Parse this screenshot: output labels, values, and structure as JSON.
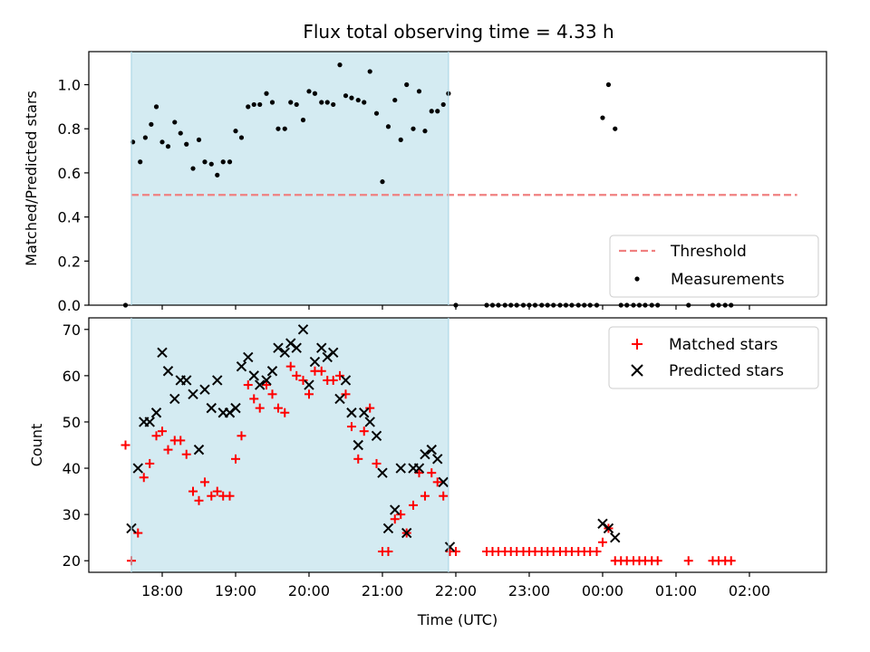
{
  "chart_data": [
    {
      "type": "scatter",
      "title": "Flux total observing time = 4.33 h",
      "xlabel": "",
      "ylabel": "Matched/Predicted stars",
      "ylim": [
        0,
        1.15
      ],
      "yticks": [
        0.0,
        0.2,
        0.4,
        0.6,
        0.8,
        1.0
      ],
      "ytick_labels": [
        "0.0",
        "0.2",
        "0.4",
        "0.6",
        "0.8",
        "1.0"
      ],
      "shaded_interval_hours": [
        17.58,
        21.9
      ],
      "shade_color": "#add8e6",
      "threshold": {
        "name": "Threshold",
        "value": 0.5,
        "x_range": [
          17.58,
          26.65
        ],
        "color": "#f08080"
      },
      "series": [
        {
          "name": "Measurements",
          "color": "#000000",
          "points": [
            [
              17.5,
              0.0
            ],
            [
              17.6,
              0.74
            ],
            [
              17.7,
              0.65
            ],
            [
              17.77,
              0.76
            ],
            [
              17.85,
              0.82
            ],
            [
              17.92,
              0.9
            ],
            [
              18.0,
              0.74
            ],
            [
              18.08,
              0.72
            ],
            [
              18.17,
              0.83
            ],
            [
              18.25,
              0.78
            ],
            [
              18.33,
              0.73
            ],
            [
              18.42,
              0.62
            ],
            [
              18.5,
              0.75
            ],
            [
              18.58,
              0.65
            ],
            [
              18.67,
              0.64
            ],
            [
              18.75,
              0.59
            ],
            [
              18.83,
              0.65
            ],
            [
              18.92,
              0.65
            ],
            [
              19.0,
              0.79
            ],
            [
              19.08,
              0.76
            ],
            [
              19.17,
              0.9
            ],
            [
              19.25,
              0.91
            ],
            [
              19.33,
              0.91
            ],
            [
              19.42,
              0.96
            ],
            [
              19.5,
              0.92
            ],
            [
              19.58,
              0.8
            ],
            [
              19.67,
              0.8
            ],
            [
              19.75,
              0.92
            ],
            [
              19.83,
              0.91
            ],
            [
              19.92,
              0.84
            ],
            [
              20.0,
              0.97
            ],
            [
              20.08,
              0.96
            ],
            [
              20.17,
              0.92
            ],
            [
              20.25,
              0.92
            ],
            [
              20.33,
              0.91
            ],
            [
              20.42,
              1.09
            ],
            [
              20.5,
              0.95
            ],
            [
              20.58,
              0.94
            ],
            [
              20.67,
              0.93
            ],
            [
              20.75,
              0.92
            ],
            [
              20.83,
              1.06
            ],
            [
              20.92,
              0.87
            ],
            [
              21.0,
              0.56
            ],
            [
              21.08,
              0.81
            ],
            [
              21.17,
              0.93
            ],
            [
              21.25,
              0.75
            ],
            [
              21.33,
              1.0
            ],
            [
              21.42,
              0.8
            ],
            [
              21.5,
              0.97
            ],
            [
              21.58,
              0.79
            ],
            [
              21.67,
              0.88
            ],
            [
              21.75,
              0.88
            ],
            [
              21.83,
              0.91
            ],
            [
              21.9,
              0.96
            ],
            [
              22.0,
              0.0
            ],
            [
              22.42,
              0.0
            ],
            [
              22.5,
              0.0
            ],
            [
              22.58,
              0.0
            ],
            [
              22.67,
              0.0
            ],
            [
              22.75,
              0.0
            ],
            [
              22.83,
              0.0
            ],
            [
              22.92,
              0.0
            ],
            [
              23.0,
              0.0
            ],
            [
              23.08,
              0.0
            ],
            [
              23.17,
              0.0
            ],
            [
              23.25,
              0.0
            ],
            [
              23.33,
              0.0
            ],
            [
              23.42,
              0.0
            ],
            [
              23.5,
              0.0
            ],
            [
              23.58,
              0.0
            ],
            [
              23.67,
              0.0
            ],
            [
              23.75,
              0.0
            ],
            [
              23.83,
              0.0
            ],
            [
              23.92,
              0.0
            ],
            [
              24.0,
              0.85
            ],
            [
              24.08,
              1.0
            ],
            [
              24.17,
              0.8
            ],
            [
              24.25,
              0.0
            ],
            [
              24.33,
              0.0
            ],
            [
              24.42,
              0.0
            ],
            [
              24.5,
              0.0
            ],
            [
              24.58,
              0.0
            ],
            [
              24.67,
              0.0
            ],
            [
              24.75,
              0.0
            ],
            [
              25.17,
              0.0
            ],
            [
              25.5,
              0.0
            ],
            [
              25.58,
              0.0
            ],
            [
              25.67,
              0.0
            ],
            [
              25.75,
              0.0
            ]
          ]
        }
      ],
      "legend": {
        "placement": "lower-right",
        "entries": [
          "Threshold",
          "Measurements"
        ]
      }
    },
    {
      "type": "scatter",
      "title": "",
      "xlabel": "Time (UTC)",
      "ylabel": "Count",
      "ylim": [
        17.5,
        72.5
      ],
      "yticks": [
        20,
        30,
        40,
        50,
        60,
        70
      ],
      "ytick_labels": [
        "20",
        "30",
        "40",
        "50",
        "60",
        "70"
      ],
      "xlim": [
        17.0,
        27.05
      ],
      "xticks": [
        18,
        19,
        20,
        21,
        22,
        23,
        24,
        25,
        26
      ],
      "xtick_labels": [
        "18:00",
        "19:00",
        "20:00",
        "21:00",
        "22:00",
        "23:00",
        "00:00",
        "01:00",
        "02:00"
      ],
      "shaded_interval_hours": [
        17.58,
        21.9
      ],
      "series": [
        {
          "name": "Matched stars",
          "marker": "plus",
          "color": "#ff0000",
          "points": [
            [
              17.5,
              45
            ],
            [
              17.58,
              20
            ],
            [
              17.67,
              26
            ],
            [
              17.75,
              38
            ],
            [
              17.83,
              41
            ],
            [
              17.92,
              47
            ],
            [
              18.0,
              48
            ],
            [
              18.08,
              44
            ],
            [
              18.17,
              46
            ],
            [
              18.25,
              46
            ],
            [
              18.33,
              43
            ],
            [
              18.42,
              35
            ],
            [
              18.5,
              33
            ],
            [
              18.58,
              37
            ],
            [
              18.67,
              34
            ],
            [
              18.75,
              35
            ],
            [
              18.83,
              34
            ],
            [
              18.92,
              34
            ],
            [
              19.0,
              42
            ],
            [
              19.08,
              47
            ],
            [
              19.17,
              58
            ],
            [
              19.25,
              55
            ],
            [
              19.33,
              53
            ],
            [
              19.42,
              58
            ],
            [
              19.5,
              56
            ],
            [
              19.58,
              53
            ],
            [
              19.67,
              52
            ],
            [
              19.75,
              62
            ],
            [
              19.83,
              60
            ],
            [
              19.92,
              59
            ],
            [
              20.0,
              56
            ],
            [
              20.08,
              61
            ],
            [
              20.17,
              61
            ],
            [
              20.25,
              59
            ],
            [
              20.33,
              59
            ],
            [
              20.42,
              60
            ],
            [
              20.5,
              56
            ],
            [
              20.58,
              49
            ],
            [
              20.67,
              42
            ],
            [
              20.75,
              48
            ],
            [
              20.83,
              53
            ],
            [
              20.92,
              41
            ],
            [
              21.0,
              22
            ],
            [
              21.08,
              22
            ],
            [
              21.17,
              29
            ],
            [
              21.25,
              30
            ],
            [
              21.33,
              26
            ],
            [
              21.42,
              32
            ],
            [
              21.5,
              39
            ],
            [
              21.58,
              34
            ],
            [
              21.67,
              39
            ],
            [
              21.75,
              37
            ],
            [
              21.83,
              34
            ],
            [
              21.92,
              22
            ],
            [
              22.0,
              22
            ],
            [
              22.42,
              22
            ],
            [
              22.5,
              22
            ],
            [
              22.58,
              22
            ],
            [
              22.67,
              22
            ],
            [
              22.75,
              22
            ],
            [
              22.83,
              22
            ],
            [
              22.92,
              22
            ],
            [
              23.0,
              22
            ],
            [
              23.08,
              22
            ],
            [
              23.17,
              22
            ],
            [
              23.25,
              22
            ],
            [
              23.33,
              22
            ],
            [
              23.42,
              22
            ],
            [
              23.5,
              22
            ],
            [
              23.58,
              22
            ],
            [
              23.67,
              22
            ],
            [
              23.75,
              22
            ],
            [
              23.83,
              22
            ],
            [
              23.92,
              22
            ],
            [
              24.0,
              24
            ],
            [
              24.08,
              27
            ],
            [
              24.17,
              20
            ],
            [
              24.25,
              20
            ],
            [
              24.33,
              20
            ],
            [
              24.42,
              20
            ],
            [
              24.5,
              20
            ],
            [
              24.58,
              20
            ],
            [
              24.67,
              20
            ],
            [
              24.75,
              20
            ],
            [
              25.17,
              20
            ],
            [
              25.5,
              20
            ],
            [
              25.58,
              20
            ],
            [
              25.67,
              20
            ],
            [
              25.75,
              20
            ]
          ]
        },
        {
          "name": "Predicted stars",
          "marker": "x",
          "color": "#000000",
          "points": [
            [
              17.58,
              27
            ],
            [
              17.67,
              40
            ],
            [
              17.75,
              50
            ],
            [
              17.83,
              50
            ],
            [
              17.92,
              52
            ],
            [
              18.0,
              65
            ],
            [
              18.08,
              61
            ],
            [
              18.17,
              55
            ],
            [
              18.25,
              59
            ],
            [
              18.33,
              59
            ],
            [
              18.42,
              56
            ],
            [
              18.5,
              44
            ],
            [
              18.58,
              57
            ],
            [
              18.67,
              53
            ],
            [
              18.75,
              59
            ],
            [
              18.83,
              52
            ],
            [
              18.92,
              52
            ],
            [
              19.0,
              53
            ],
            [
              19.08,
              62
            ],
            [
              19.17,
              64
            ],
            [
              19.25,
              60
            ],
            [
              19.33,
              58
            ],
            [
              19.42,
              59
            ],
            [
              19.5,
              61
            ],
            [
              19.58,
              66
            ],
            [
              19.67,
              65
            ],
            [
              19.75,
              67
            ],
            [
              19.83,
              66
            ],
            [
              19.92,
              70
            ],
            [
              20.0,
              58
            ],
            [
              20.08,
              63
            ],
            [
              20.17,
              66
            ],
            [
              20.25,
              64
            ],
            [
              20.33,
              65
            ],
            [
              20.42,
              55
            ],
            [
              20.5,
              59
            ],
            [
              20.58,
              52
            ],
            [
              20.67,
              45
            ],
            [
              20.75,
              52
            ],
            [
              20.83,
              50
            ],
            [
              20.92,
              47
            ],
            [
              21.0,
              39
            ],
            [
              21.08,
              27
            ],
            [
              21.17,
              31
            ],
            [
              21.25,
              40
            ],
            [
              21.33,
              26
            ],
            [
              21.42,
              40
            ],
            [
              21.5,
              40
            ],
            [
              21.58,
              43
            ],
            [
              21.67,
              44
            ],
            [
              21.75,
              42
            ],
            [
              21.83,
              37
            ],
            [
              21.92,
              23
            ],
            [
              24.0,
              28
            ],
            [
              24.08,
              27
            ],
            [
              24.17,
              25
            ]
          ]
        }
      ],
      "legend": {
        "placement": "top-right",
        "entries": [
          "Matched stars",
          "Predicted stars"
        ]
      }
    }
  ]
}
